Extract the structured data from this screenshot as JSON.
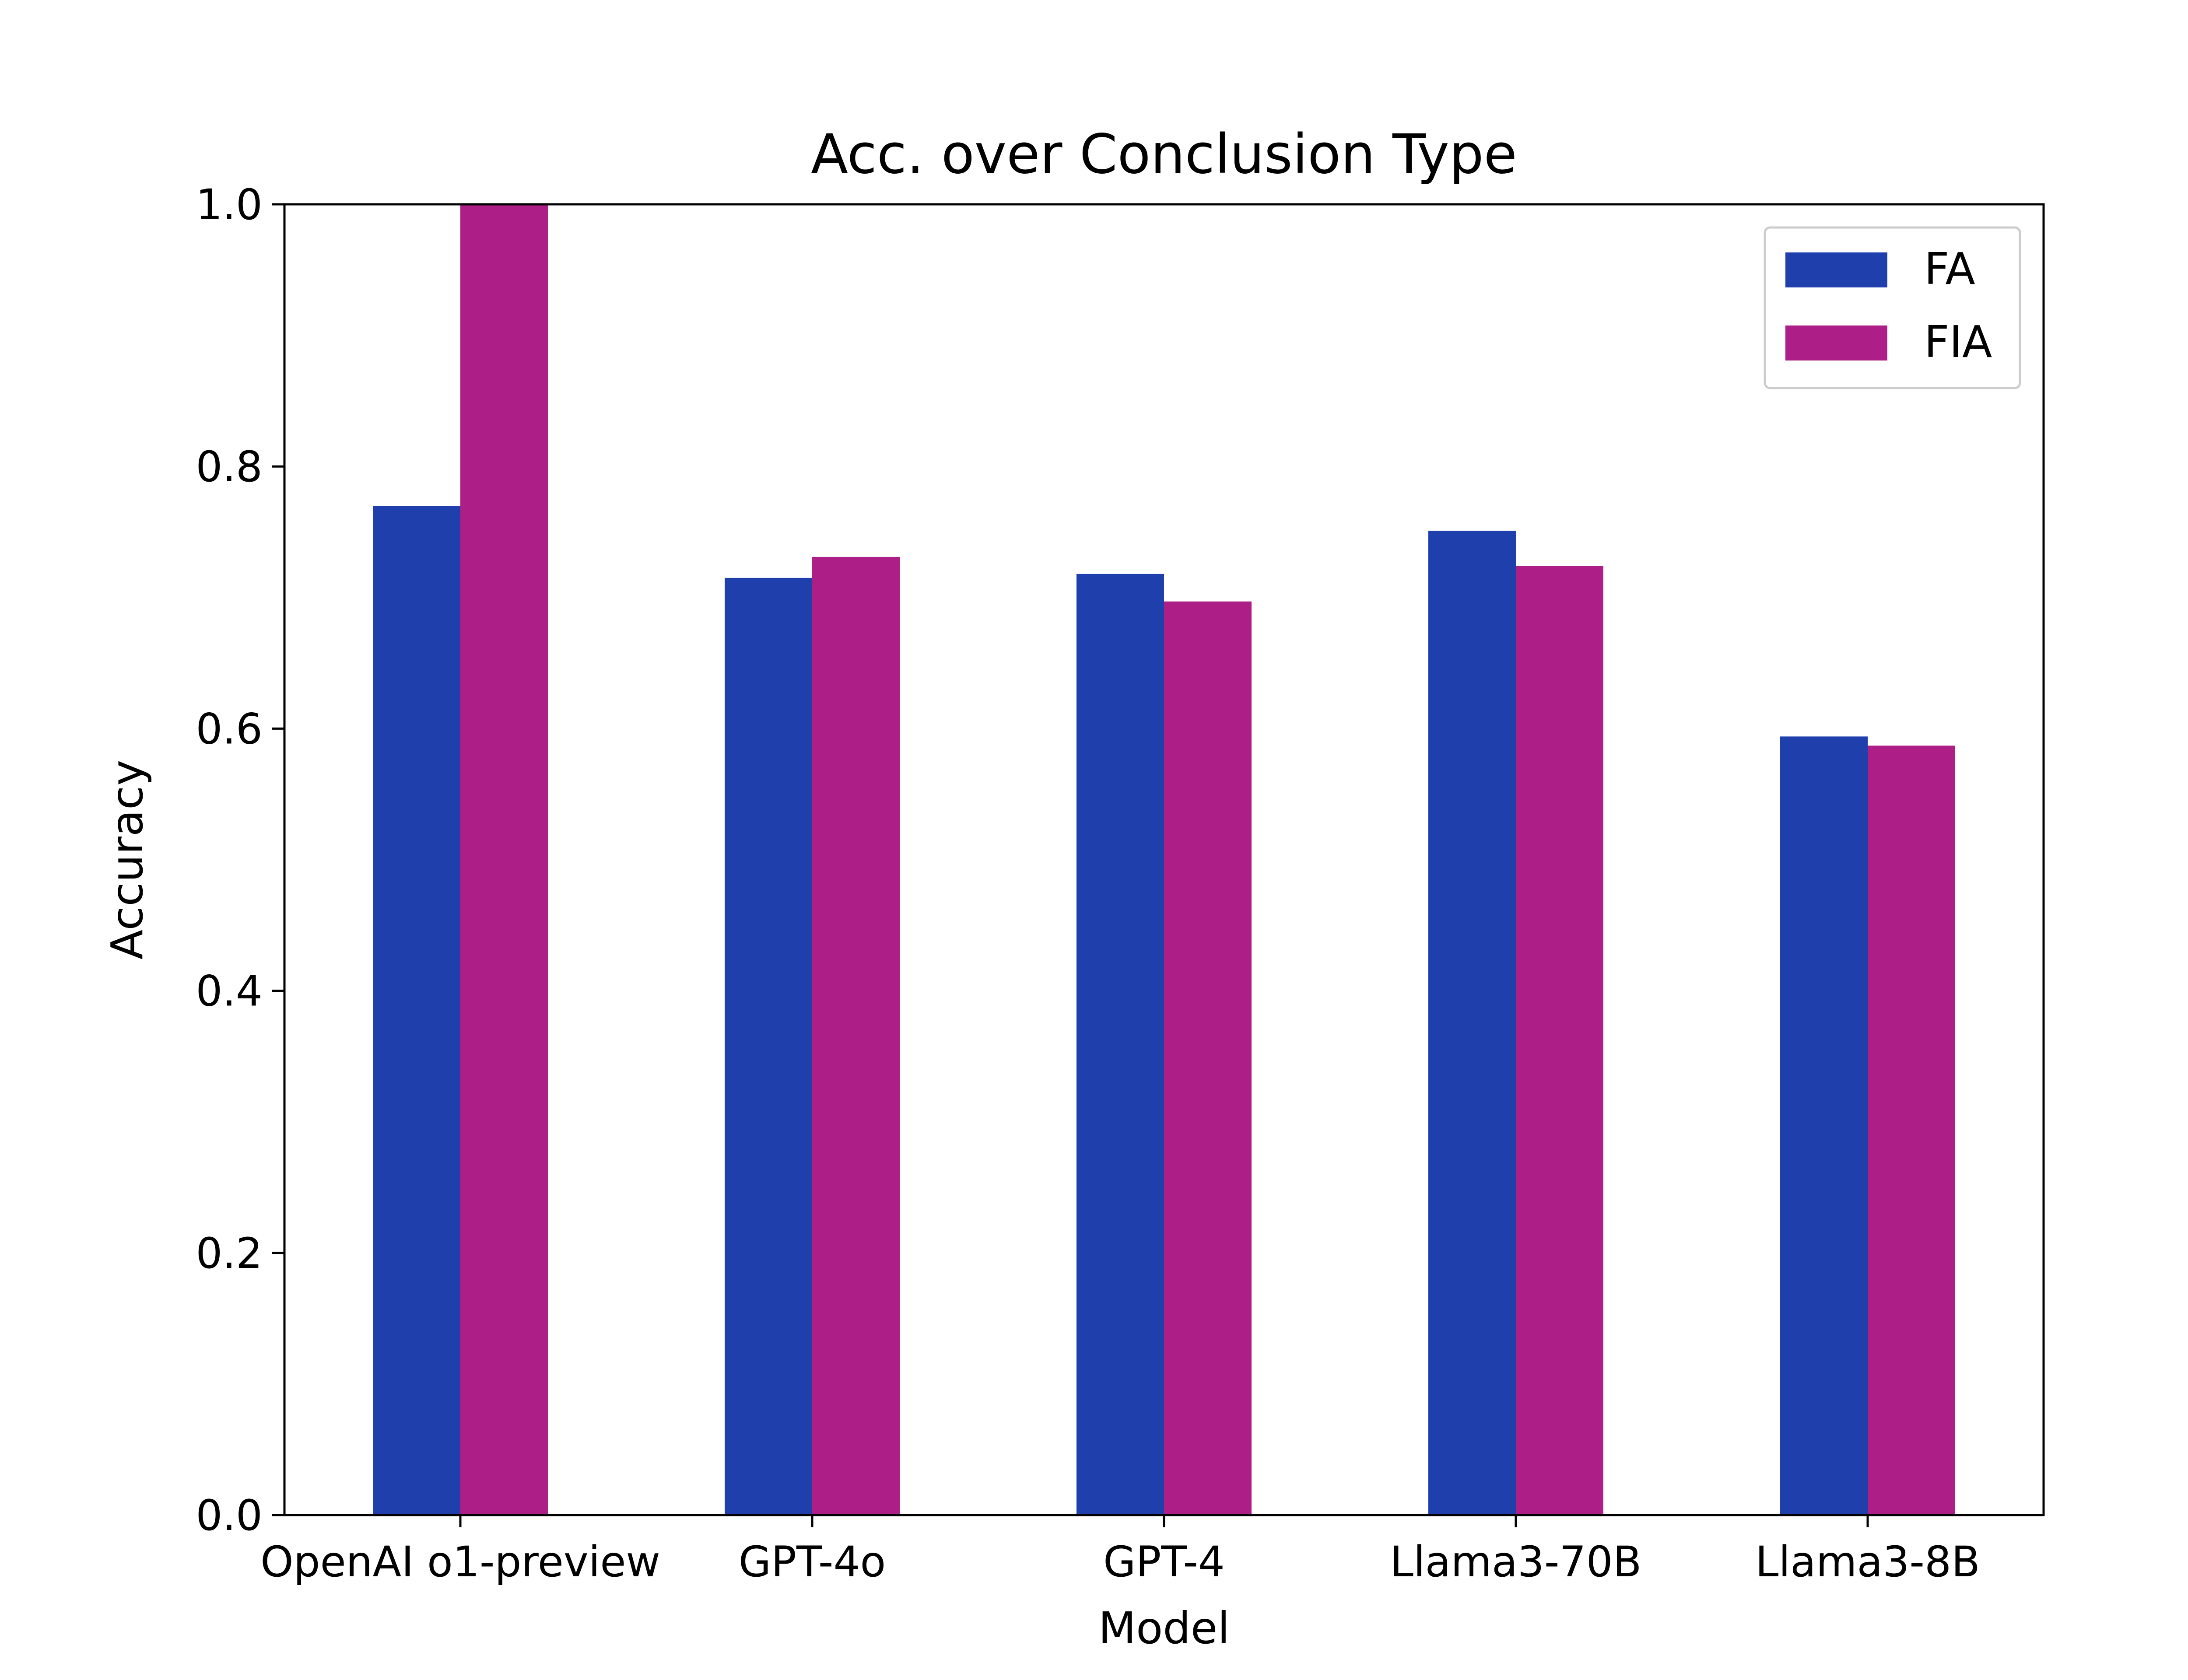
{
  "chart_data": {
    "type": "bar",
    "title": "Acc. over Conclusion Type",
    "xlabel": "Model",
    "ylabel": "Accuracy",
    "categories": [
      "OpenAI o1-preview",
      "GPT-4o",
      "GPT-4",
      "Llama3-70B",
      "Llama3-8B"
    ],
    "series": [
      {
        "name": "FA",
        "color": "#1f3fad",
        "values": [
          0.77,
          0.715,
          0.718,
          0.751,
          0.594
        ]
      },
      {
        "name": "FIA",
        "color": "#ad1e87",
        "values": [
          1.0,
          0.731,
          0.697,
          0.724,
          0.587
        ]
      }
    ],
    "ylim": [
      0.0,
      1.0
    ],
    "yticks": [
      "0.0",
      "0.2",
      "0.4",
      "0.6",
      "0.8",
      "1.0"
    ],
    "grid": false,
    "legend_position": "top-right"
  }
}
